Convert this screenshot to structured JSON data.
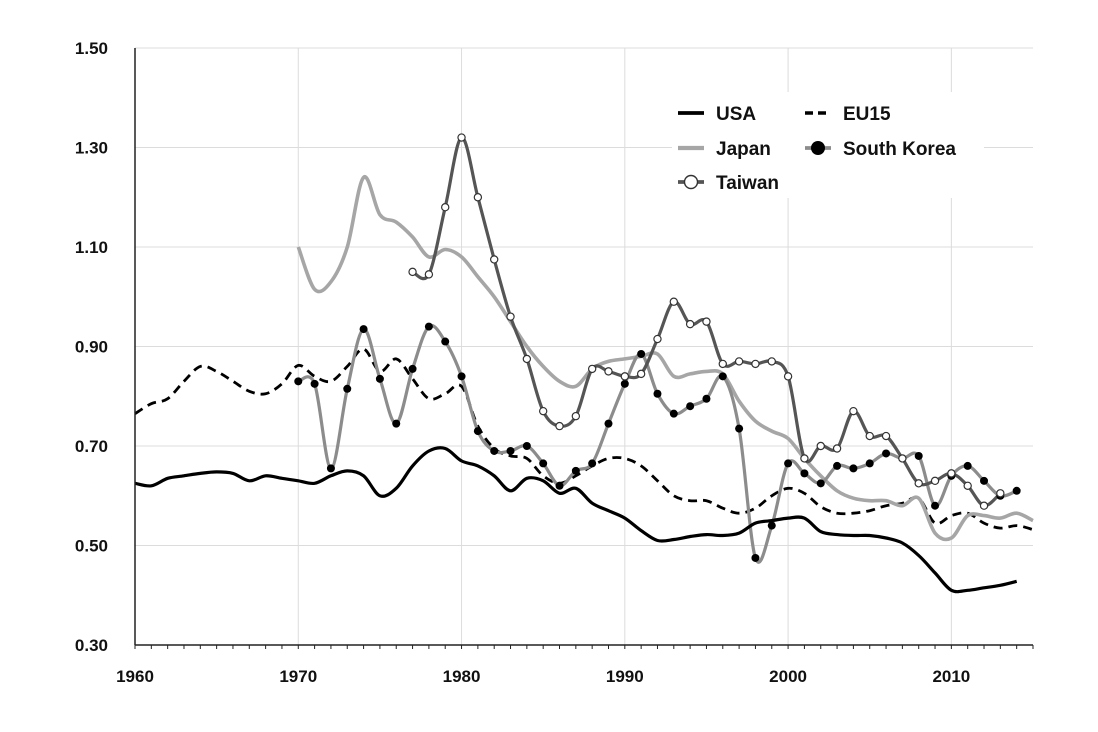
{
  "chart_data": {
    "type": "line",
    "title": "",
    "xlabel": "",
    "ylabel": "",
    "xlim": [
      1960,
      2015
    ],
    "ylim": [
      0.3,
      1.5
    ],
    "x_ticks": [
      "1960",
      "1970",
      "1980",
      "1990",
      "2000",
      "2010"
    ],
    "y_ticks": [
      "1.50",
      "1.30",
      "1.10",
      "0.90",
      "0.70",
      "0.50",
      "0.30"
    ],
    "grid": true,
    "legend_position": "top-right",
    "series": [
      {
        "name": "USA",
        "style": {
          "color": "#000000",
          "dash": "",
          "width": 3.2,
          "marker": "none"
        },
        "points": [
          [
            1960,
            0.625
          ],
          [
            1961,
            0.62
          ],
          [
            1962,
            0.635
          ],
          [
            1963,
            0.64
          ],
          [
            1964,
            0.645
          ],
          [
            1965,
            0.648
          ],
          [
            1966,
            0.645
          ],
          [
            1967,
            0.63
          ],
          [
            1968,
            0.64
          ],
          [
            1969,
            0.635
          ],
          [
            1970,
            0.63
          ],
          [
            1971,
            0.625
          ],
          [
            1972,
            0.64
          ],
          [
            1973,
            0.65
          ],
          [
            1974,
            0.64
          ],
          [
            1975,
            0.6
          ],
          [
            1976,
            0.615
          ],
          [
            1977,
            0.66
          ],
          [
            1978,
            0.69
          ],
          [
            1979,
            0.695
          ],
          [
            1980,
            0.67
          ],
          [
            1981,
            0.66
          ],
          [
            1982,
            0.64
          ],
          [
            1983,
            0.61
          ],
          [
            1984,
            0.635
          ],
          [
            1985,
            0.63
          ],
          [
            1986,
            0.605
          ],
          [
            1987,
            0.615
          ],
          [
            1988,
            0.585
          ],
          [
            1989,
            0.57
          ],
          [
            1990,
            0.555
          ],
          [
            1991,
            0.53
          ],
          [
            1992,
            0.51
          ],
          [
            1993,
            0.512
          ],
          [
            1994,
            0.518
          ],
          [
            1995,
            0.522
          ],
          [
            1996,
            0.52
          ],
          [
            1997,
            0.525
          ],
          [
            1998,
            0.545
          ],
          [
            1999,
            0.55
          ],
          [
            2000,
            0.555
          ],
          [
            2001,
            0.555
          ],
          [
            2002,
            0.528
          ],
          [
            2003,
            0.522
          ],
          [
            2004,
            0.52
          ],
          [
            2005,
            0.52
          ],
          [
            2006,
            0.515
          ],
          [
            2007,
            0.505
          ],
          [
            2008,
            0.48
          ],
          [
            2009,
            0.445
          ],
          [
            2010,
            0.41
          ],
          [
            2011,
            0.41
          ],
          [
            2012,
            0.415
          ],
          [
            2013,
            0.42
          ],
          [
            2014,
            0.428
          ]
        ]
      },
      {
        "name": "EU15",
        "style": {
          "color": "#000000",
          "dash": "9,6",
          "width": 2.8,
          "marker": "none"
        },
        "points": [
          [
            1960,
            0.765
          ],
          [
            1961,
            0.785
          ],
          [
            1962,
            0.795
          ],
          [
            1963,
            0.83
          ],
          [
            1964,
            0.86
          ],
          [
            1965,
            0.85
          ],
          [
            1966,
            0.83
          ],
          [
            1967,
            0.81
          ],
          [
            1968,
            0.805
          ],
          [
            1969,
            0.825
          ],
          [
            1970,
            0.862
          ],
          [
            1971,
            0.84
          ],
          [
            1972,
            0.83
          ],
          [
            1973,
            0.86
          ],
          [
            1974,
            0.895
          ],
          [
            1975,
            0.85
          ],
          [
            1976,
            0.875
          ],
          [
            1977,
            0.835
          ],
          [
            1978,
            0.795
          ],
          [
            1979,
            0.805
          ],
          [
            1980,
            0.82
          ],
          [
            1981,
            0.74
          ],
          [
            1982,
            0.695
          ],
          [
            1983,
            0.68
          ],
          [
            1984,
            0.675
          ],
          [
            1985,
            0.64
          ],
          [
            1986,
            0.625
          ],
          [
            1987,
            0.64
          ],
          [
            1988,
            0.66
          ],
          [
            1989,
            0.675
          ],
          [
            1990,
            0.675
          ],
          [
            1991,
            0.66
          ],
          [
            1992,
            0.63
          ],
          [
            1993,
            0.6
          ],
          [
            1994,
            0.59
          ],
          [
            1995,
            0.59
          ],
          [
            1996,
            0.575
          ],
          [
            1997,
            0.565
          ],
          [
            1998,
            0.575
          ],
          [
            1999,
            0.6
          ],
          [
            2000,
            0.615
          ],
          [
            2001,
            0.605
          ],
          [
            2002,
            0.578
          ],
          [
            2003,
            0.565
          ],
          [
            2004,
            0.565
          ],
          [
            2005,
            0.57
          ],
          [
            2006,
            0.58
          ],
          [
            2007,
            0.585
          ],
          [
            2008,
            0.595
          ],
          [
            2009,
            0.545
          ],
          [
            2010,
            0.56
          ],
          [
            2011,
            0.565
          ],
          [
            2012,
            0.545
          ],
          [
            2013,
            0.535
          ],
          [
            2014,
            0.54
          ],
          [
            2015,
            0.532
          ]
        ]
      },
      {
        "name": "Japan",
        "style": {
          "color": "#a6a6a6",
          "dash": "",
          "width": 3.6,
          "marker": "none"
        },
        "points": [
          [
            1970,
            1.1
          ],
          [
            1971,
            1.015
          ],
          [
            1972,
            1.03
          ],
          [
            1973,
            1.1
          ],
          [
            1974,
            1.24
          ],
          [
            1975,
            1.165
          ],
          [
            1976,
            1.15
          ],
          [
            1977,
            1.12
          ],
          [
            1978,
            1.08
          ],
          [
            1979,
            1.095
          ],
          [
            1980,
            1.08
          ],
          [
            1981,
            1.04
          ],
          [
            1982,
            1.0
          ],
          [
            1983,
            0.95
          ],
          [
            1984,
            0.9
          ],
          [
            1985,
            0.86
          ],
          [
            1986,
            0.83
          ],
          [
            1987,
            0.82
          ],
          [
            1988,
            0.855
          ],
          [
            1989,
            0.87
          ],
          [
            1990,
            0.875
          ],
          [
            1991,
            0.88
          ],
          [
            1992,
            0.885
          ],
          [
            1993,
            0.84
          ],
          [
            1994,
            0.845
          ],
          [
            1995,
            0.85
          ],
          [
            1996,
            0.845
          ],
          [
            1997,
            0.79
          ],
          [
            1998,
            0.75
          ],
          [
            1999,
            0.73
          ],
          [
            2000,
            0.715
          ],
          [
            2001,
            0.675
          ],
          [
            2002,
            0.64
          ],
          [
            2003,
            0.61
          ],
          [
            2004,
            0.595
          ],
          [
            2005,
            0.59
          ],
          [
            2006,
            0.59
          ],
          [
            2007,
            0.58
          ],
          [
            2008,
            0.595
          ],
          [
            2009,
            0.525
          ],
          [
            2010,
            0.515
          ],
          [
            2011,
            0.56
          ],
          [
            2012,
            0.56
          ],
          [
            2013,
            0.555
          ],
          [
            2014,
            0.565
          ],
          [
            2015,
            0.55
          ]
        ]
      },
      {
        "name": "South Korea",
        "style": {
          "color": "#8c8c8c",
          "dash": "",
          "width": 3.2,
          "marker": "filled"
        },
        "points": [
          [
            1970,
            0.83
          ],
          [
            1971,
            0.825
          ],
          [
            1972,
            0.655
          ],
          [
            1973,
            0.815
          ],
          [
            1974,
            0.935
          ],
          [
            1975,
            0.835
          ],
          [
            1976,
            0.745
          ],
          [
            1977,
            0.855
          ],
          [
            1978,
            0.94
          ],
          [
            1979,
            0.91
          ],
          [
            1980,
            0.84
          ],
          [
            1981,
            0.73
          ],
          [
            1982,
            0.69
          ],
          [
            1983,
            0.69
          ],
          [
            1984,
            0.7
          ],
          [
            1985,
            0.665
          ],
          [
            1986,
            0.62
          ],
          [
            1987,
            0.65
          ],
          [
            1988,
            0.665
          ],
          [
            1989,
            0.745
          ],
          [
            1990,
            0.825
          ],
          [
            1991,
            0.885
          ],
          [
            1992,
            0.805
          ],
          [
            1993,
            0.765
          ],
          [
            1994,
            0.78
          ],
          [
            1995,
            0.795
          ],
          [
            1996,
            0.84
          ],
          [
            1997,
            0.735
          ],
          [
            1998,
            0.475
          ],
          [
            1999,
            0.54
          ],
          [
            2000,
            0.665
          ],
          [
            2001,
            0.645
          ],
          [
            2002,
            0.625
          ],
          [
            2003,
            0.66
          ],
          [
            2004,
            0.655
          ],
          [
            2005,
            0.665
          ],
          [
            2006,
            0.685
          ],
          [
            2007,
            0.675
          ],
          [
            2008,
            0.68
          ],
          [
            2009,
            0.58
          ],
          [
            2010,
            0.64
          ],
          [
            2011,
            0.66
          ],
          [
            2012,
            0.63
          ],
          [
            2013,
            0.6
          ],
          [
            2014,
            0.61
          ]
        ]
      },
      {
        "name": "Taiwan",
        "style": {
          "color": "#555555",
          "dash": "",
          "width": 3.2,
          "marker": "open"
        },
        "points": [
          [
            1977,
            1.05
          ],
          [
            1978,
            1.045
          ],
          [
            1979,
            1.18
          ],
          [
            1980,
            1.32
          ],
          [
            1981,
            1.2
          ],
          [
            1982,
            1.075
          ],
          [
            1983,
            0.96
          ],
          [
            1984,
            0.875
          ],
          [
            1985,
            0.77
          ],
          [
            1986,
            0.74
          ],
          [
            1987,
            0.76
          ],
          [
            1988,
            0.855
          ],
          [
            1989,
            0.85
          ],
          [
            1990,
            0.84
          ],
          [
            1991,
            0.845
          ],
          [
            1992,
            0.915
          ],
          [
            1993,
            0.99
          ],
          [
            1994,
            0.945
          ],
          [
            1995,
            0.95
          ],
          [
            1996,
            0.865
          ],
          [
            1997,
            0.87
          ],
          [
            1998,
            0.865
          ],
          [
            1999,
            0.87
          ],
          [
            2000,
            0.84
          ],
          [
            2001,
            0.675
          ],
          [
            2002,
            0.7
          ],
          [
            2003,
            0.695
          ],
          [
            2004,
            0.77
          ],
          [
            2005,
            0.72
          ],
          [
            2006,
            0.72
          ],
          [
            2007,
            0.675
          ],
          [
            2008,
            0.625
          ],
          [
            2009,
            0.63
          ],
          [
            2010,
            0.645
          ],
          [
            2011,
            0.62
          ],
          [
            2012,
            0.58
          ],
          [
            2013,
            0.605
          ]
        ]
      }
    ]
  }
}
